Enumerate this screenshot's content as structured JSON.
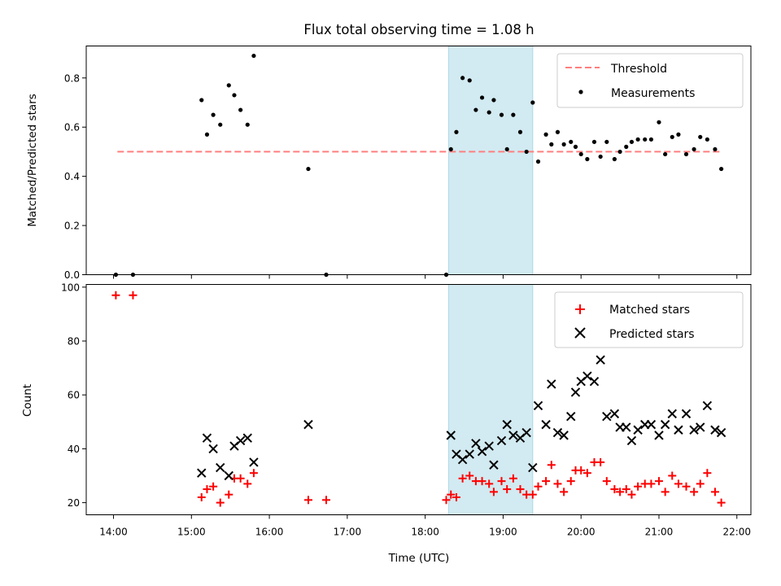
{
  "chart_data": {
    "title": "Flux total observing time = 1.08 h",
    "xlabel": "Time (UTC)",
    "x_ticks": [
      "14:00",
      "15:00",
      "16:00",
      "17:00",
      "18:00",
      "19:00",
      "20:00",
      "21:00",
      "22:00"
    ],
    "x_range_hours": [
      13.65,
      22.18
    ],
    "shaded_span_hours": [
      18.3,
      19.38
    ],
    "colors": {
      "span": "#add8e6",
      "threshold": "#ff7f7f",
      "measurements": "#000000",
      "matched": "#ff0000",
      "predicted": "#000000"
    },
    "panels": [
      {
        "type": "scatter",
        "ylabel": "Matched/Predicted stars",
        "ylim": [
          0,
          0.93
        ],
        "y_ticks": [
          "0.0",
          "0.2",
          "0.4",
          "0.6",
          "0.8"
        ],
        "threshold": {
          "name": "Threshold",
          "value": 0.5,
          "x_range_hours": [
            14.05,
            21.8
          ]
        },
        "legend_position": "top-right",
        "series": [
          {
            "name": "Measurements",
            "marker": "dot",
            "points": [
              [
                14.03,
                0.0
              ],
              [
                14.25,
                0.0
              ],
              [
                15.13,
                0.71
              ],
              [
                15.2,
                0.57
              ],
              [
                15.28,
                0.65
              ],
              [
                15.37,
                0.61
              ],
              [
                15.48,
                0.77
              ],
              [
                15.55,
                0.73
              ],
              [
                15.63,
                0.67
              ],
              [
                15.72,
                0.61
              ],
              [
                15.8,
                0.89
              ],
              [
                16.5,
                0.43
              ],
              [
                16.73,
                0.0
              ],
              [
                18.27,
                0.0
              ],
              [
                18.33,
                0.51
              ],
              [
                18.4,
                0.58
              ],
              [
                18.48,
                0.8
              ],
              [
                18.57,
                0.79
              ],
              [
                18.65,
                0.67
              ],
              [
                18.73,
                0.72
              ],
              [
                18.82,
                0.66
              ],
              [
                18.88,
                0.71
              ],
              [
                18.98,
                0.65
              ],
              [
                19.05,
                0.51
              ],
              [
                19.13,
                0.65
              ],
              [
                19.22,
                0.58
              ],
              [
                19.3,
                0.5
              ],
              [
                19.38,
                0.7
              ],
              [
                19.45,
                0.46
              ],
              [
                19.55,
                0.57
              ],
              [
                19.62,
                0.53
              ],
              [
                19.7,
                0.58
              ],
              [
                19.78,
                0.53
              ],
              [
                19.87,
                0.54
              ],
              [
                19.93,
                0.52
              ],
              [
                20.0,
                0.49
              ],
              [
                20.08,
                0.47
              ],
              [
                20.17,
                0.54
              ],
              [
                20.25,
                0.48
              ],
              [
                20.33,
                0.54
              ],
              [
                20.43,
                0.47
              ],
              [
                20.5,
                0.5
              ],
              [
                20.58,
                0.52
              ],
              [
                20.65,
                0.54
              ],
              [
                20.73,
                0.55
              ],
              [
                20.82,
                0.55
              ],
              [
                20.9,
                0.55
              ],
              [
                21.0,
                0.62
              ],
              [
                21.08,
                0.49
              ],
              [
                21.17,
                0.56
              ],
              [
                21.25,
                0.57
              ],
              [
                21.35,
                0.49
              ],
              [
                21.45,
                0.51
              ],
              [
                21.53,
                0.56
              ],
              [
                21.62,
                0.55
              ],
              [
                21.72,
                0.51
              ],
              [
                21.8,
                0.43
              ]
            ]
          }
        ]
      },
      {
        "type": "scatter",
        "ylabel": "Count",
        "ylim": [
          15.5,
          101
        ],
        "y_ticks": [
          "20",
          "40",
          "60",
          "80",
          "100"
        ],
        "legend_position": "top-right",
        "series": [
          {
            "name": "Matched stars",
            "marker": "plus",
            "points": [
              [
                14.03,
                97
              ],
              [
                14.25,
                97
              ],
              [
                15.13,
                22
              ],
              [
                15.2,
                25
              ],
              [
                15.28,
                26
              ],
              [
                15.37,
                20
              ],
              [
                15.48,
                23
              ],
              [
                15.55,
                29
              ],
              [
                15.63,
                29
              ],
              [
                15.72,
                27
              ],
              [
                15.8,
                31
              ],
              [
                16.5,
                21
              ],
              [
                16.73,
                21
              ],
              [
                18.27,
                21
              ],
              [
                18.33,
                23
              ],
              [
                18.4,
                22
              ],
              [
                18.48,
                29
              ],
              [
                18.57,
                30
              ],
              [
                18.65,
                28
              ],
              [
                18.73,
                28
              ],
              [
                18.82,
                27
              ],
              [
                18.88,
                24
              ],
              [
                18.98,
                28
              ],
              [
                19.05,
                25
              ],
              [
                19.13,
                29
              ],
              [
                19.22,
                25
              ],
              [
                19.3,
                23
              ],
              [
                19.38,
                23
              ],
              [
                19.45,
                26
              ],
              [
                19.55,
                28
              ],
              [
                19.62,
                34
              ],
              [
                19.7,
                27
              ],
              [
                19.78,
                24
              ],
              [
                19.87,
                28
              ],
              [
                19.93,
                32
              ],
              [
                20.0,
                32
              ],
              [
                20.08,
                31
              ],
              [
                20.17,
                35
              ],
              [
                20.25,
                35
              ],
              [
                20.33,
                28
              ],
              [
                20.43,
                25
              ],
              [
                20.5,
                24
              ],
              [
                20.58,
                25
              ],
              [
                20.65,
                23
              ],
              [
                20.73,
                26
              ],
              [
                20.82,
                27
              ],
              [
                20.9,
                27
              ],
              [
                21.0,
                28
              ],
              [
                21.08,
                24
              ],
              [
                21.17,
                30
              ],
              [
                21.25,
                27
              ],
              [
                21.35,
                26
              ],
              [
                21.45,
                24
              ],
              [
                21.53,
                27
              ],
              [
                21.62,
                31
              ],
              [
                21.72,
                24
              ],
              [
                21.8,
                20
              ]
            ]
          },
          {
            "name": "Predicted stars",
            "marker": "x",
            "points": [
              [
                15.13,
                31
              ],
              [
                15.2,
                44
              ],
              [
                15.28,
                40
              ],
              [
                15.37,
                33
              ],
              [
                15.48,
                30
              ],
              [
                15.55,
                41
              ],
              [
                15.63,
                43
              ],
              [
                15.72,
                44
              ],
              [
                15.8,
                35
              ],
              [
                16.5,
                49
              ],
              [
                18.33,
                45
              ],
              [
                18.4,
                38
              ],
              [
                18.48,
                36
              ],
              [
                18.57,
                38
              ],
              [
                18.65,
                42
              ],
              [
                18.73,
                39
              ],
              [
                18.82,
                41
              ],
              [
                18.88,
                34
              ],
              [
                18.98,
                43
              ],
              [
                19.05,
                49
              ],
              [
                19.13,
                45
              ],
              [
                19.22,
                44
              ],
              [
                19.3,
                46
              ],
              [
                19.38,
                33
              ],
              [
                19.45,
                56
              ],
              [
                19.55,
                49
              ],
              [
                19.62,
                64
              ],
              [
                19.7,
                46
              ],
              [
                19.78,
                45
              ],
              [
                19.87,
                52
              ],
              [
                19.93,
                61
              ],
              [
                20.0,
                65
              ],
              [
                20.08,
                67
              ],
              [
                20.17,
                65
              ],
              [
                20.25,
                73
              ],
              [
                20.33,
                52
              ],
              [
                20.43,
                53
              ],
              [
                20.5,
                48
              ],
              [
                20.58,
                48
              ],
              [
                20.65,
                43
              ],
              [
                20.73,
                47
              ],
              [
                20.82,
                49
              ],
              [
                20.9,
                49
              ],
              [
                21.0,
                45
              ],
              [
                21.08,
                49
              ],
              [
                21.17,
                53
              ],
              [
                21.25,
                47
              ],
              [
                21.35,
                53
              ],
              [
                21.45,
                47
              ],
              [
                21.53,
                48
              ],
              [
                21.62,
                56
              ],
              [
                21.72,
                47
              ],
              [
                21.8,
                46
              ]
            ]
          }
        ]
      }
    ]
  }
}
